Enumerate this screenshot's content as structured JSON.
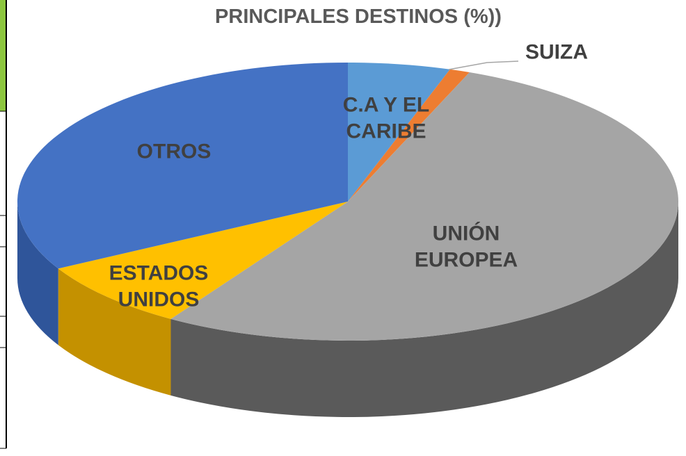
{
  "chart_data": {
    "type": "pie3d",
    "title": "PRINCIPALES DESTINOS (%))",
    "categories": [
      "C.A Y EL CARIBE",
      "SUIZA",
      "UNIÓN EUROPEA",
      "ESTADOS UNIDOS",
      "OTROS"
    ],
    "values": [
      5,
      1,
      53,
      8,
      33
    ],
    "colors": [
      "#5b9bd5",
      "#ed7d31",
      "#a5a5a5",
      "#ffc000",
      "#4472c4"
    ],
    "side_colors": [
      "#3d74a6",
      "#b85a1e",
      "#5a5a5a",
      "#c49100",
      "#2f559a"
    ]
  }
}
